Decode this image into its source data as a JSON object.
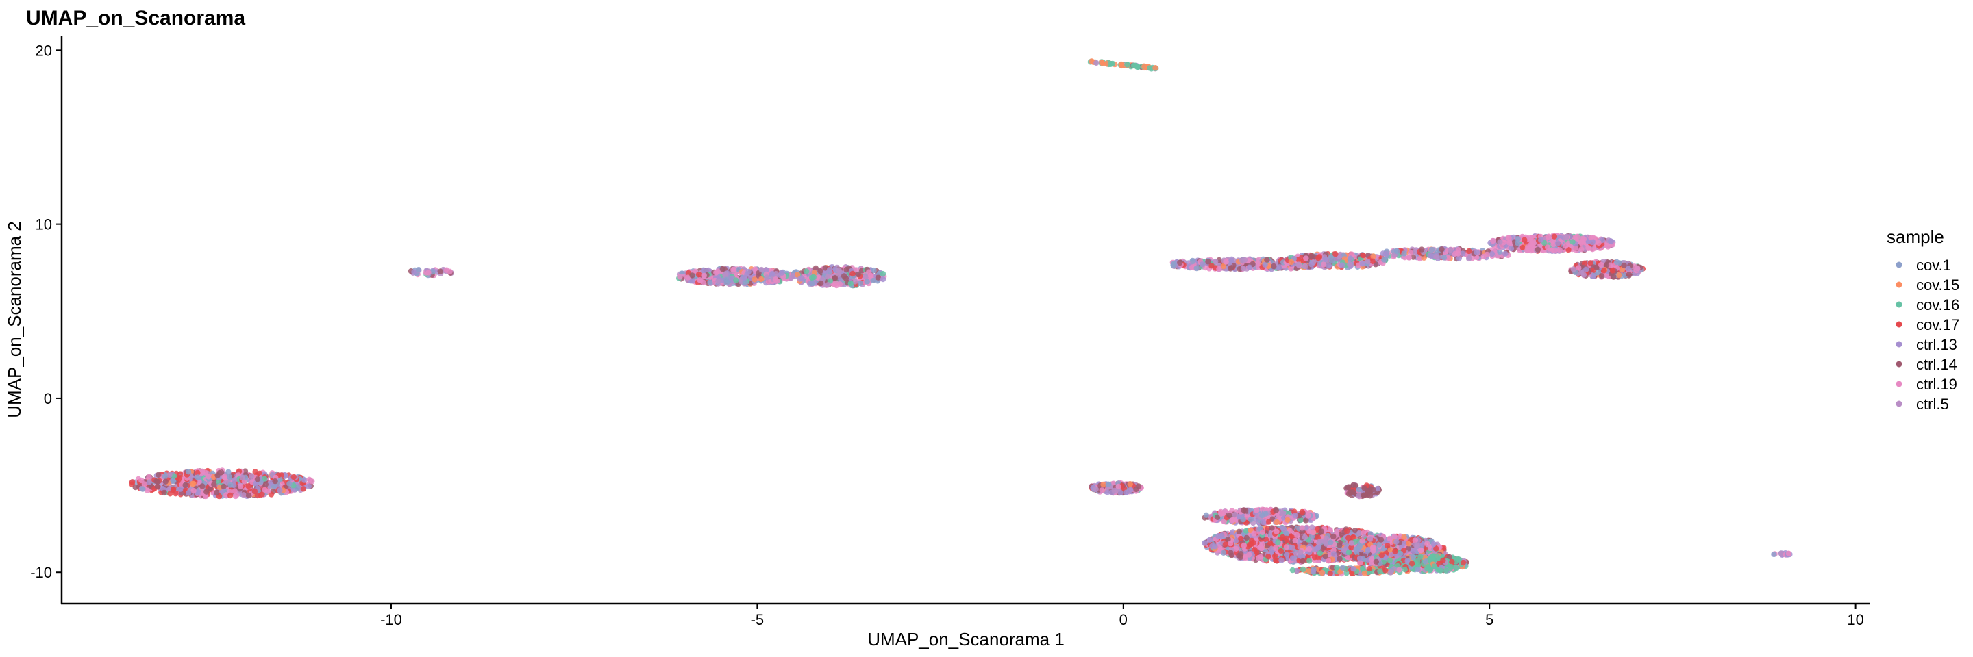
{
  "chart_data": {
    "type": "scatter",
    "title": "UMAP_on_Scanorama",
    "xlabel": "UMAP_on_Scanorama 1",
    "ylabel": "UMAP_on_Scanorama 2",
    "xlim": [
      -14.5,
      10.2
    ],
    "ylim": [
      -11.8,
      20.8
    ],
    "x_ticks": [
      -10,
      -5,
      0,
      5,
      10
    ],
    "x_tick_labels": [
      "-10",
      "-5",
      "0",
      "5",
      "10"
    ],
    "y_ticks": [
      -10,
      0,
      10,
      20
    ],
    "y_tick_labels": [
      "-10",
      "0",
      "10",
      "20"
    ],
    "grid": false,
    "legend": {
      "title": "sample",
      "placement": "right",
      "entries": [
        {
          "name": "cov.1",
          "color": "#8DA0CB"
        },
        {
          "name": "cov.15",
          "color": "#FC8D62"
        },
        {
          "name": "cov.16",
          "color": "#66C2A5"
        },
        {
          "name": "cov.17",
          "color": "#E5484D"
        },
        {
          "name": "ctrl.13",
          "color": "#A68FD0"
        },
        {
          "name": "ctrl.14",
          "color": "#A0596F"
        },
        {
          "name": "ctrl.19",
          "color": "#E78AC3"
        },
        {
          "name": "ctrl.5",
          "color": "#B98EC6"
        }
      ]
    },
    "clusters": [
      {
        "cx": -12.3,
        "cy": -4.9,
        "rx": 1.25,
        "ry": 0.75,
        "n": 700,
        "weights": [
          1,
          0.2,
          0.3,
          2,
          1.4,
          1.6,
          2.2,
          1
        ]
      },
      {
        "cx": -9.45,
        "cy": 7.25,
        "rx": 0.3,
        "ry": 0.18,
        "n": 35,
        "weights": [
          1,
          0,
          0.3,
          0,
          1,
          1,
          1,
          1
        ]
      },
      {
        "cx": -5.3,
        "cy": 7.0,
        "rx": 0.8,
        "ry": 0.45,
        "n": 380,
        "weights": [
          1,
          0.2,
          0.6,
          0.2,
          1.4,
          1.2,
          2,
          1
        ]
      },
      {
        "cx": -3.9,
        "cy": 7.0,
        "rx": 0.65,
        "ry": 0.55,
        "n": 320,
        "weights": [
          1,
          0.2,
          0.4,
          0.2,
          1.3,
          1.4,
          2,
          1
        ]
      },
      {
        "cx": 1.7,
        "cy": 7.7,
        "rx": 1.1,
        "ry": 0.3,
        "n": 380,
        "weights": [
          1,
          0.3,
          0.4,
          0.5,
          1.4,
          1.6,
          1.6,
          1
        ]
      },
      {
        "cx": 2.9,
        "cy": 7.9,
        "rx": 0.7,
        "ry": 0.4,
        "n": 300,
        "weights": [
          1,
          0.3,
          0.5,
          1,
          1.3,
          1.6,
          1.6,
          1
        ]
      },
      {
        "cx": 4.4,
        "cy": 8.3,
        "rx": 0.9,
        "ry": 0.3,
        "n": 200,
        "weights": [
          1,
          0.2,
          0.3,
          0.3,
          1.3,
          1.2,
          2,
          1
        ]
      },
      {
        "cx": 5.85,
        "cy": 8.9,
        "rx": 0.85,
        "ry": 0.45,
        "n": 460,
        "weights": [
          0.6,
          0.2,
          0.2,
          0.6,
          1,
          0.8,
          4,
          0.7
        ]
      },
      {
        "cx": 6.6,
        "cy": 7.4,
        "rx": 0.5,
        "ry": 0.45,
        "n": 280,
        "weights": [
          0.8,
          0.2,
          0.2,
          1.6,
          1,
          2.6,
          1,
          1
        ]
      },
      {
        "cx": -0.1,
        "cy": -5.15,
        "rx": 0.35,
        "ry": 0.3,
        "n": 200,
        "weights": [
          1,
          0.2,
          0.3,
          0.6,
          1.5,
          1.4,
          1.5,
          1
        ]
      },
      {
        "cx": 1.9,
        "cy": -6.8,
        "rx": 0.8,
        "ry": 0.4,
        "n": 300,
        "weights": [
          1,
          0.2,
          0.3,
          0.8,
          1.3,
          1.3,
          2.6,
          1
        ]
      },
      {
        "cx": 2.4,
        "cy": -8.4,
        "rx": 1.3,
        "ry": 1.0,
        "n": 1300,
        "weights": [
          1,
          0.3,
          0.4,
          2.2,
          1.5,
          1.5,
          2.4,
          1
        ]
      },
      {
        "cx": 3.7,
        "cy": -8.8,
        "rx": 0.7,
        "ry": 0.9,
        "n": 600,
        "weights": [
          1.2,
          0.5,
          0.7,
          1.5,
          1.5,
          1.4,
          1.5,
          1
        ]
      },
      {
        "cx": 4.2,
        "cy": -9.5,
        "rx": 0.5,
        "ry": 0.45,
        "n": 320,
        "weights": [
          0.6,
          0.6,
          4,
          0.8,
          0.7,
          0.6,
          0.4,
          0.5
        ]
      },
      {
        "cx": 3.1,
        "cy": -9.9,
        "rx": 0.8,
        "ry": 0.18,
        "n": 140,
        "weights": [
          0.5,
          1.4,
          2.2,
          1.4,
          0.5,
          0.4,
          0.3,
          0.4
        ]
      },
      {
        "cx": 3.25,
        "cy": -5.3,
        "rx": 0.25,
        "ry": 0.35,
        "n": 80,
        "weights": [
          0.5,
          0,
          0.1,
          0.3,
          0.6,
          3,
          0.6,
          0.5
        ]
      },
      {
        "cx": 9.0,
        "cy": -8.95,
        "rx": 0.12,
        "ry": 0.06,
        "n": 16,
        "weights": [
          1,
          0,
          0,
          0,
          1,
          0,
          3,
          1
        ]
      }
    ],
    "segments": [
      {
        "x1": -0.45,
        "y1": 19.35,
        "x2": 0.45,
        "y2": 18.95,
        "n": 70,
        "weights": [
          0.3,
          2.5,
          3,
          0.2,
          0.2,
          0.1,
          0.1,
          0.1
        ]
      }
    ]
  }
}
